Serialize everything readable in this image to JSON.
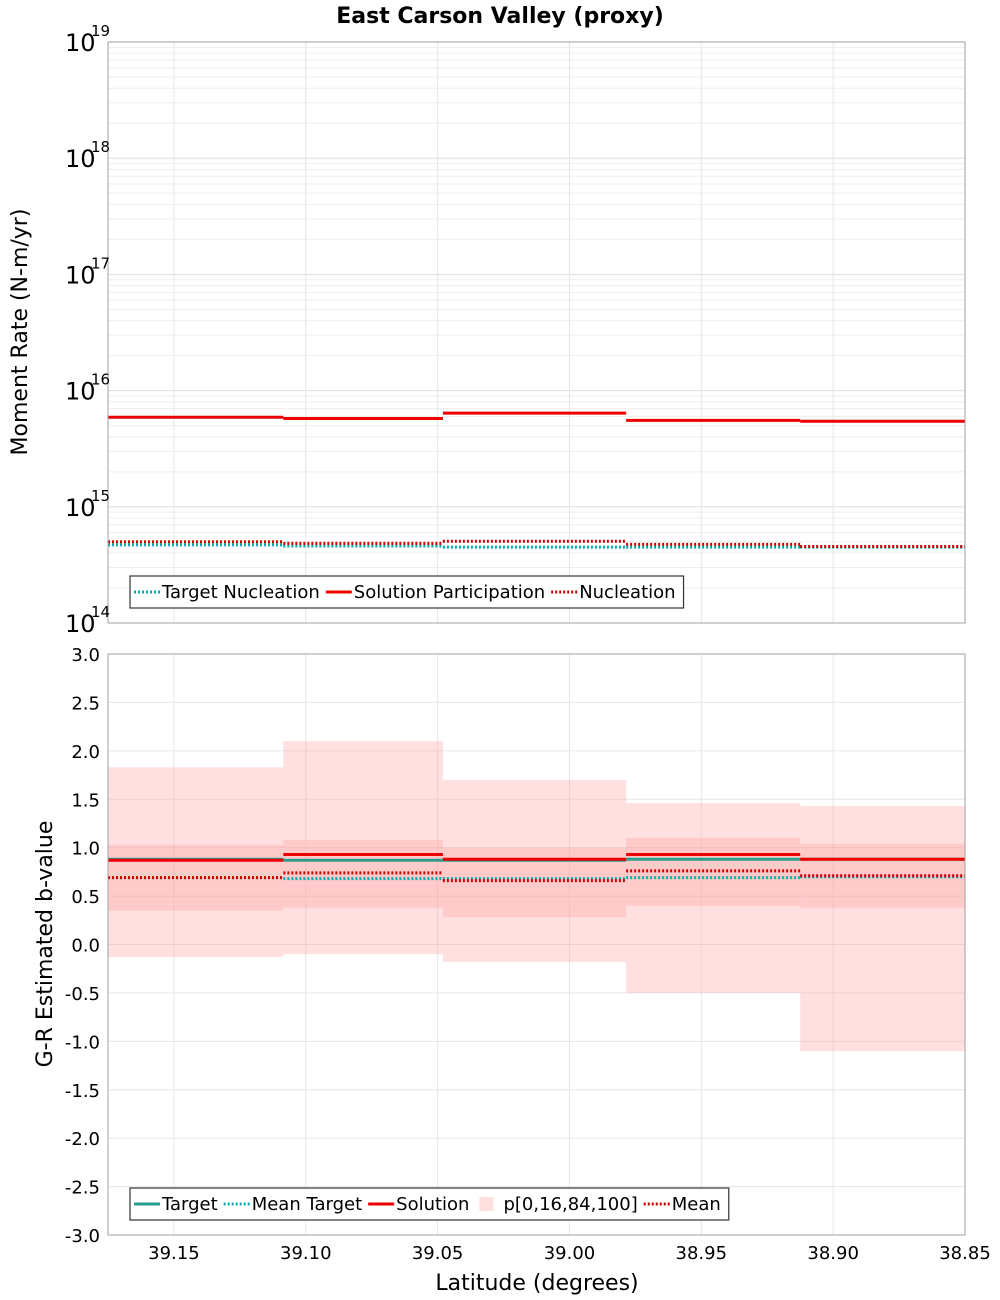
{
  "title": "East Carson Valley (proxy)",
  "chart_data": [
    {
      "type": "line",
      "panel": "top",
      "ylabel": "Moment Rate (N-m/yr)",
      "yscale": "log",
      "ylim": [
        100000000000000.0,
        1e+19
      ],
      "xlim": [
        39.175,
        38.85
      ],
      "x_reversed": true,
      "y_tick_labels": [
        {
          "value": 1e+19,
          "base": "10",
          "exp": "19"
        },
        {
          "value": 1e+18,
          "base": "10",
          "exp": "18"
        },
        {
          "value": 1e+17,
          "base": "10",
          "exp": "17"
        },
        {
          "value": 1e+16,
          "base": "10",
          "exp": "16"
        },
        {
          "value": 1000000000000000.0,
          "base": "10",
          "exp": "15"
        },
        {
          "value": 100000000000000.0,
          "base": "10",
          "exp": "14"
        }
      ],
      "bins": [
        [
          39.175,
          39.1085
        ],
        [
          39.1085,
          39.048
        ],
        [
          39.048,
          38.9785
        ],
        [
          38.9785,
          38.9125
        ],
        [
          38.9125,
          38.85
        ]
      ],
      "series": [
        {
          "name": "Target Nucleation",
          "color": "#00aaaa",
          "style": "dotted",
          "values": [
            470000000000000.0,
            460000000000000.0,
            450000000000000.0,
            450000000000000.0,
            450000000000000.0
          ]
        },
        {
          "name": "Solution Participation",
          "color": "#ee0000",
          "style": "solid",
          "values": [
            5900000000000000.0,
            5750000000000000.0,
            6400000000000000.0,
            5550000000000000.0,
            5450000000000000.0
          ]
        },
        {
          "name": "Nucleation",
          "color": "#cc0000",
          "style": "dotted",
          "values": [
            500000000000000.0,
            485000000000000.0,
            505000000000000.0,
            475000000000000.0,
            455000000000000.0
          ]
        }
      ],
      "legend": {
        "placement": "bottom-left",
        "entries": [
          "Target Nucleation",
          "Solution Participation",
          "Nucleation"
        ]
      },
      "grid": true
    },
    {
      "type": "line",
      "panel": "bottom",
      "xlabel": "Latitude (degrees)",
      "ylabel": "G-R Estimated b-value",
      "ylim": [
        -3.0,
        3.0
      ],
      "xlim": [
        39.175,
        38.85
      ],
      "x_reversed": true,
      "y_ticks": [
        3.0,
        2.5,
        2.0,
        1.5,
        1.0,
        0.5,
        0.0,
        -0.5,
        -1.0,
        -1.5,
        -2.0,
        -2.5,
        -3.0
      ],
      "y_tick_labels": [
        "3.0",
        "2.5",
        "2.0",
        "1.5",
        "1.0",
        "0.5",
        "0.0",
        "-0.5",
        "-1.0",
        "-1.5",
        "-2.0",
        "-2.5",
        "-3.0"
      ],
      "x_ticks": [
        39.15,
        39.1,
        39.05,
        39.0,
        38.95,
        38.9,
        38.85
      ],
      "x_tick_labels": [
        "39.15",
        "39.10",
        "39.05",
        "39.00",
        "38.95",
        "38.90",
        "38.85"
      ],
      "bins": [
        [
          39.175,
          39.1085
        ],
        [
          39.1085,
          39.048
        ],
        [
          39.048,
          38.9785
        ],
        [
          38.9785,
          38.9125
        ],
        [
          38.9125,
          38.85
        ]
      ],
      "bands": {
        "name": "p[0,16,84,100]",
        "color": "#ff9999",
        "p0": [
          -0.13,
          -0.1,
          -0.18,
          -0.5,
          -1.1
        ],
        "p16": [
          0.35,
          0.38,
          0.28,
          0.4,
          0.38
        ],
        "p84": [
          1.03,
          1.08,
          1.0,
          1.1,
          1.04
        ],
        "p100": [
          1.83,
          2.1,
          1.7,
          1.46,
          1.43
        ]
      },
      "series": [
        {
          "name": "Target",
          "color": "#2a9d8f",
          "style": "solid",
          "values": [
            0.88,
            0.87,
            0.87,
            0.88,
            0.88
          ]
        },
        {
          "name": "Mean Target",
          "color": "#00b0b0",
          "style": "dotted",
          "values": [
            0.69,
            0.68,
            0.68,
            0.69,
            0.7
          ]
        },
        {
          "name": "Solution",
          "color": "#ee0000",
          "style": "solid",
          "values": [
            0.87,
            0.93,
            0.88,
            0.93,
            0.88
          ]
        },
        {
          "name": "Mean",
          "color": "#cc0000",
          "style": "dotted",
          "values": [
            0.69,
            0.74,
            0.66,
            0.76,
            0.71
          ]
        }
      ],
      "legend": {
        "placement": "bottom-left",
        "entries": [
          "Target",
          "Mean Target",
          "Solution",
          "p[0,16,84,100]",
          "Mean"
        ]
      },
      "grid": true
    }
  ]
}
